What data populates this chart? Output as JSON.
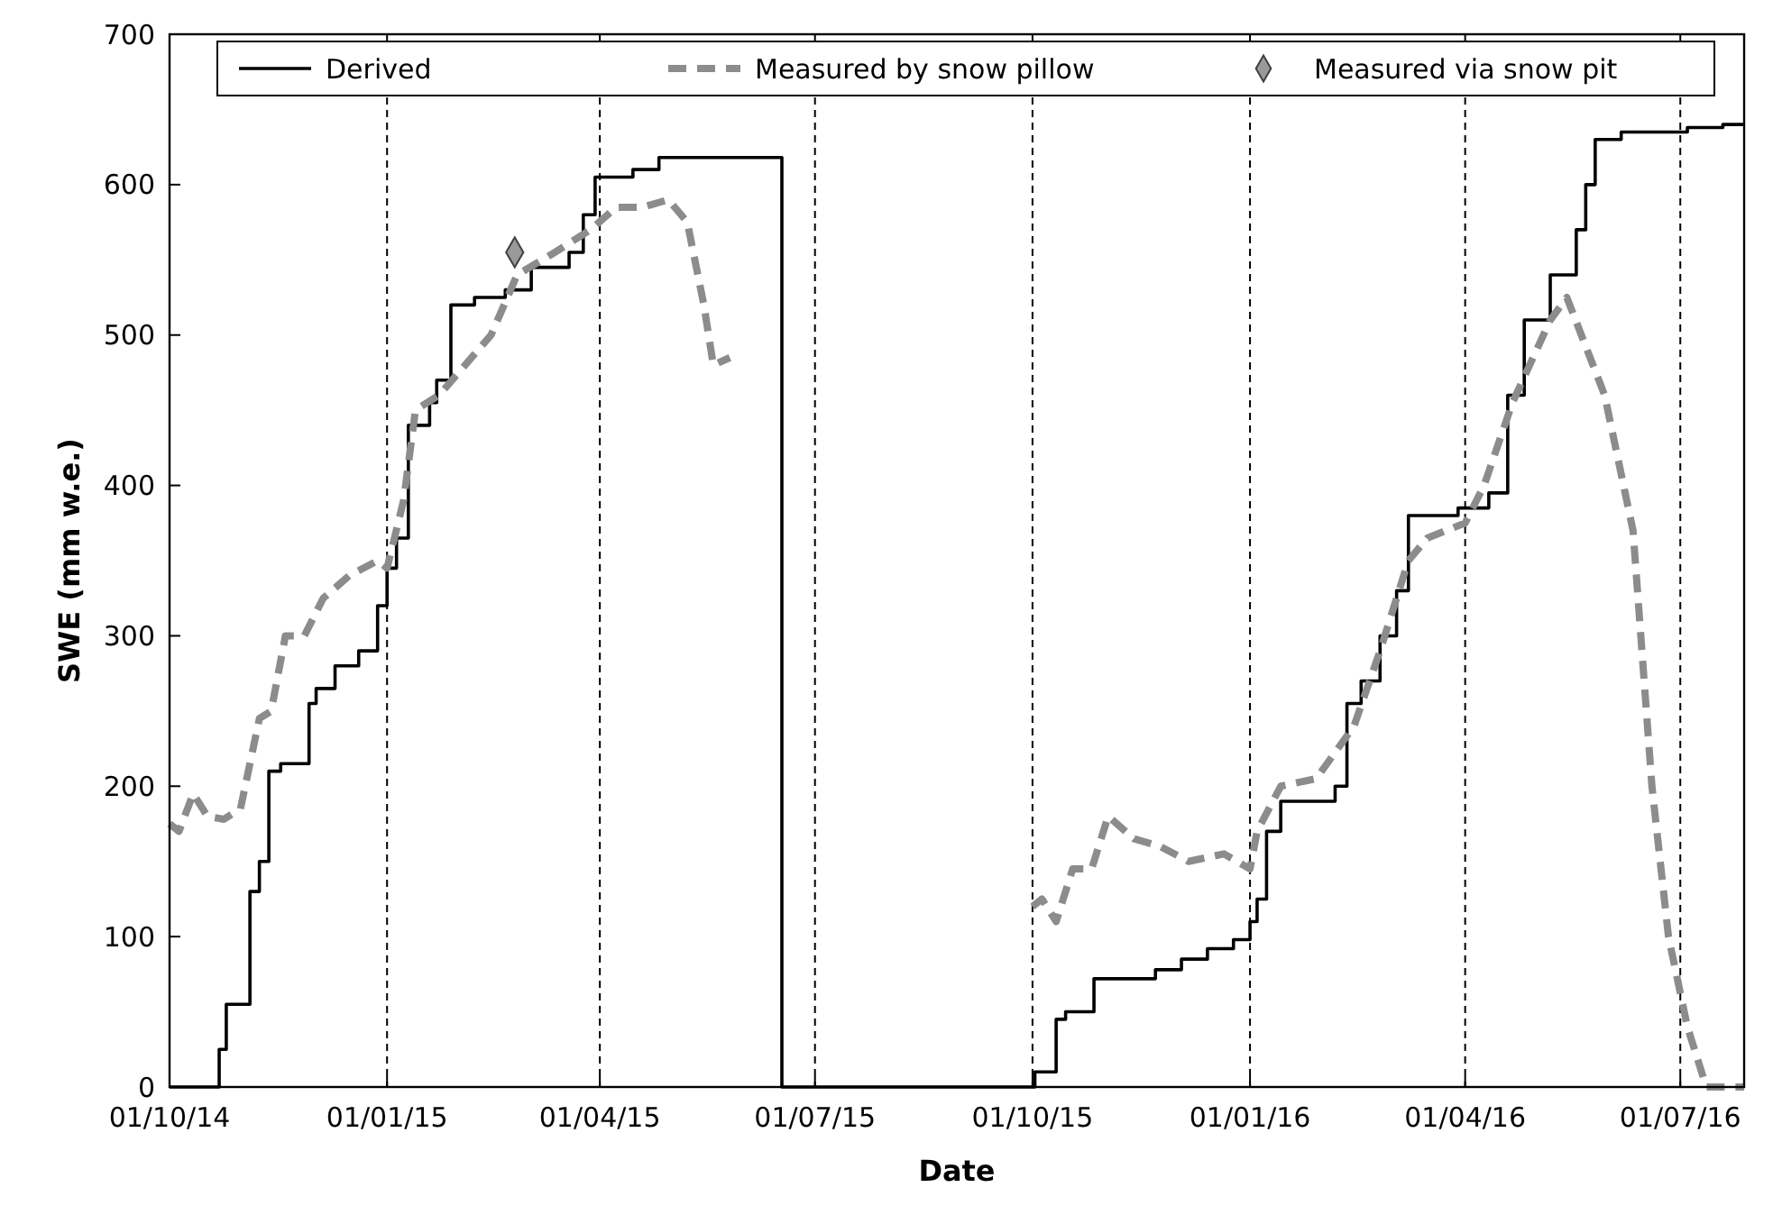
{
  "chart_data": {
    "type": "line",
    "xlabel": "Date",
    "ylabel": "SWE (mm w.e.)",
    "xlim": [
      "2014-10-01",
      "2016-07-28"
    ],
    "ylim": [
      0,
      700
    ],
    "yticks": [
      0,
      100,
      200,
      300,
      400,
      500,
      600,
      700
    ],
    "xticks": [
      {
        "value": "2014-10-01",
        "label": "01/10/14"
      },
      {
        "value": "2015-01-01",
        "label": "01/01/15"
      },
      {
        "value": "2015-04-01",
        "label": "01/04/15"
      },
      {
        "value": "2015-07-01",
        "label": "01/07/15"
      },
      {
        "value": "2015-10-01",
        "label": "01/10/15"
      },
      {
        "value": "2016-01-01",
        "label": "01/01/16"
      },
      {
        "value": "2016-04-01",
        "label": "01/04/16"
      },
      {
        "value": "2016-07-01",
        "label": "01/07/16"
      }
    ],
    "grid": "x",
    "legend": "top",
    "series": [
      {
        "name": "Derived",
        "type": "step",
        "color": "#000000",
        "line_style": "solid",
        "x": [
          "2014-10-01",
          "2014-10-22",
          "2014-10-25",
          "2014-11-04",
          "2014-11-08",
          "2014-11-12",
          "2014-11-17",
          "2014-11-29",
          "2014-12-02",
          "2014-12-10",
          "2014-12-20",
          "2014-12-28",
          "2015-01-01",
          "2015-01-05",
          "2015-01-10",
          "2015-01-19",
          "2015-01-22",
          "2015-01-28",
          "2015-02-07",
          "2015-02-20",
          "2015-03-03",
          "2015-03-19",
          "2015-03-25",
          "2015-03-30",
          "2015-04-15",
          "2015-04-26",
          "2015-06-17",
          "2015-10-01",
          "2015-10-02",
          "2015-10-11",
          "2015-10-15",
          "2015-10-27",
          "2015-11-22",
          "2015-12-03",
          "2015-12-14",
          "2015-12-25",
          "2016-01-01",
          "2016-01-04",
          "2016-01-08",
          "2016-01-14",
          "2016-02-06",
          "2016-02-11",
          "2016-02-17",
          "2016-02-25",
          "2016-03-03",
          "2016-03-08",
          "2016-03-29",
          "2016-04-11",
          "2016-04-19",
          "2016-04-26",
          "2016-05-07",
          "2016-05-18",
          "2016-05-22",
          "2016-05-26",
          "2016-06-06",
          "2016-07-04",
          "2016-07-19",
          "2016-07-28"
        ],
        "values": [
          0,
          25,
          55,
          130,
          150,
          210,
          215,
          255,
          265,
          280,
          290,
          320,
          345,
          365,
          440,
          455,
          470,
          520,
          525,
          530,
          545,
          555,
          580,
          605,
          610,
          618,
          0,
          0,
          10,
          45,
          50,
          72,
          78,
          85,
          92,
          98,
          110,
          125,
          170,
          190,
          200,
          255,
          270,
          300,
          330,
          380,
          385,
          395,
          460,
          510,
          540,
          570,
          600,
          630,
          635,
          638,
          640,
          640
        ]
      },
      {
        "name": "Measured by snow pillow",
        "color": "#8c8c8c",
        "line_style": "dashed",
        "x": [
          "2014-10-01",
          "2014-10-05",
          "2014-10-11",
          "2014-10-17",
          "2014-10-24",
          "2014-10-31",
          "2014-11-08",
          "2014-11-13",
          "2014-11-19",
          "2014-11-27",
          "2014-12-05",
          "2014-12-16",
          "2014-12-28",
          "2015-01-01",
          "2015-01-08",
          "2015-01-13",
          "2015-01-23",
          "2015-02-03",
          "2015-02-14",
          "2015-02-25",
          "2015-03-13",
          "2015-03-28",
          "2015-04-08",
          "2015-04-19",
          "2015-04-30",
          "2015-05-08",
          "2015-05-15",
          "2015-05-19",
          "2015-05-26",
          "2015-08-01",
          "2015-10-01",
          "2015-10-05",
          "2015-10-11",
          "2015-10-18",
          "2015-10-26",
          "2015-11-02",
          "2015-11-13",
          "2015-11-24",
          "2015-12-06",
          "2015-12-21",
          "2016-01-01",
          "2016-01-04",
          "2016-01-14",
          "2016-01-29",
          "2016-02-14",
          "2016-02-25",
          "2016-03-08",
          "2016-03-16",
          "2016-04-01",
          "2016-04-09",
          "2016-04-21",
          "2016-05-07",
          "2016-05-14",
          "2016-05-30",
          "2016-06-11",
          "2016-06-19",
          "2016-06-26",
          "2016-07-04",
          "2016-07-12",
          "2016-07-28"
        ],
        "values": [
          175,
          170,
          195,
          180,
          178,
          185,
          245,
          250,
          300,
          300,
          325,
          340,
          350,
          345,
          390,
          450,
          460,
          480,
          500,
          540,
          555,
          570,
          585,
          585,
          590,
          575,
          520,
          480,
          485,
          null,
          120,
          125,
          110,
          145,
          145,
          180,
          165,
          160,
          150,
          155,
          145,
          170,
          200,
          205,
          240,
          290,
          350,
          365,
          375,
          400,
          455,
          510,
          525,
          460,
          370,
          200,
          100,
          40,
          0,
          0
        ]
      },
      {
        "name": "Measured via snow pit",
        "type": "scatter",
        "color": "#999999",
        "marker": "diamond",
        "x": [
          "2015-02-24"
        ],
        "values": [
          555
        ]
      }
    ]
  }
}
